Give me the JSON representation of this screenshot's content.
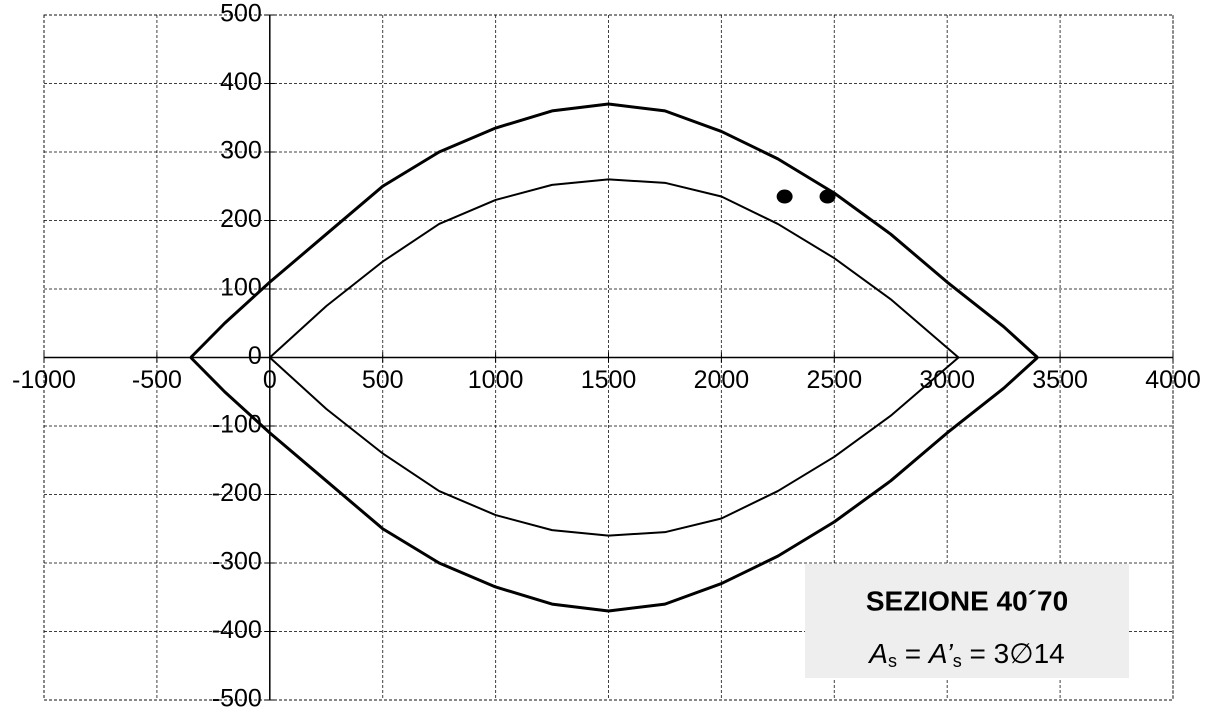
{
  "chart_data": {
    "type": "line",
    "xlim": [
      -1000,
      4000
    ],
    "ylim": [
      -500,
      500
    ],
    "xticks": [
      -1000,
      -500,
      0,
      500,
      1000,
      1500,
      2000,
      2500,
      3000,
      3500,
      4000
    ],
    "yticks": [
      -500,
      -400,
      -300,
      -200,
      -100,
      0,
      100,
      200,
      300,
      400,
      500
    ],
    "grid": true,
    "series": [
      {
        "color": "#000000",
        "width": 3,
        "x": [
          -350,
          -200,
          0,
          250,
          500,
          750,
          1000,
          1250,
          1500,
          1750,
          2000,
          2250,
          2500,
          2750,
          3000,
          3250,
          3400
        ],
        "values": [
          0,
          50,
          110,
          180,
          250,
          300,
          335,
          360,
          370,
          360,
          330,
          290,
          240,
          180,
          110,
          45,
          0
        ]
      },
      {
        "color": "#000000",
        "width": 3,
        "x": [
          -350,
          -200,
          0,
          250,
          500,
          750,
          1000,
          1250,
          1500,
          1750,
          2000,
          2250,
          2500,
          2750,
          3000,
          3250,
          3400
        ],
        "values": [
          0,
          -50,
          -110,
          -180,
          -250,
          -300,
          -335,
          -360,
          -370,
          -360,
          -330,
          -290,
          -240,
          -180,
          -110,
          -45,
          0
        ]
      },
      {
        "color": "#000000",
        "width": 2,
        "x": [
          0,
          250,
          500,
          750,
          1000,
          1250,
          1500,
          1750,
          2000,
          2250,
          2500,
          2750,
          3050
        ],
        "values": [
          0,
          75,
          140,
          195,
          230,
          252,
          260,
          255,
          235,
          195,
          145,
          85,
          0
        ]
      },
      {
        "color": "#000000",
        "width": 2,
        "x": [
          0,
          250,
          500,
          750,
          1000,
          1250,
          1500,
          1750,
          2000,
          2250,
          2500,
          2750,
          3050
        ],
        "values": [
          0,
          -75,
          -140,
          -195,
          -230,
          -252,
          -260,
          -255,
          -235,
          -195,
          -145,
          -85,
          0
        ]
      }
    ],
    "points": {
      "color": "#000000",
      "x": [
        2280,
        2470
      ],
      "values": [
        235,
        235
      ]
    },
    "annotation": {
      "title": "SEZIONE  40´70",
      "formula": [
        "A",
        "s",
        " = ",
        "A’",
        "s",
        " = 3∅14"
      ]
    }
  }
}
